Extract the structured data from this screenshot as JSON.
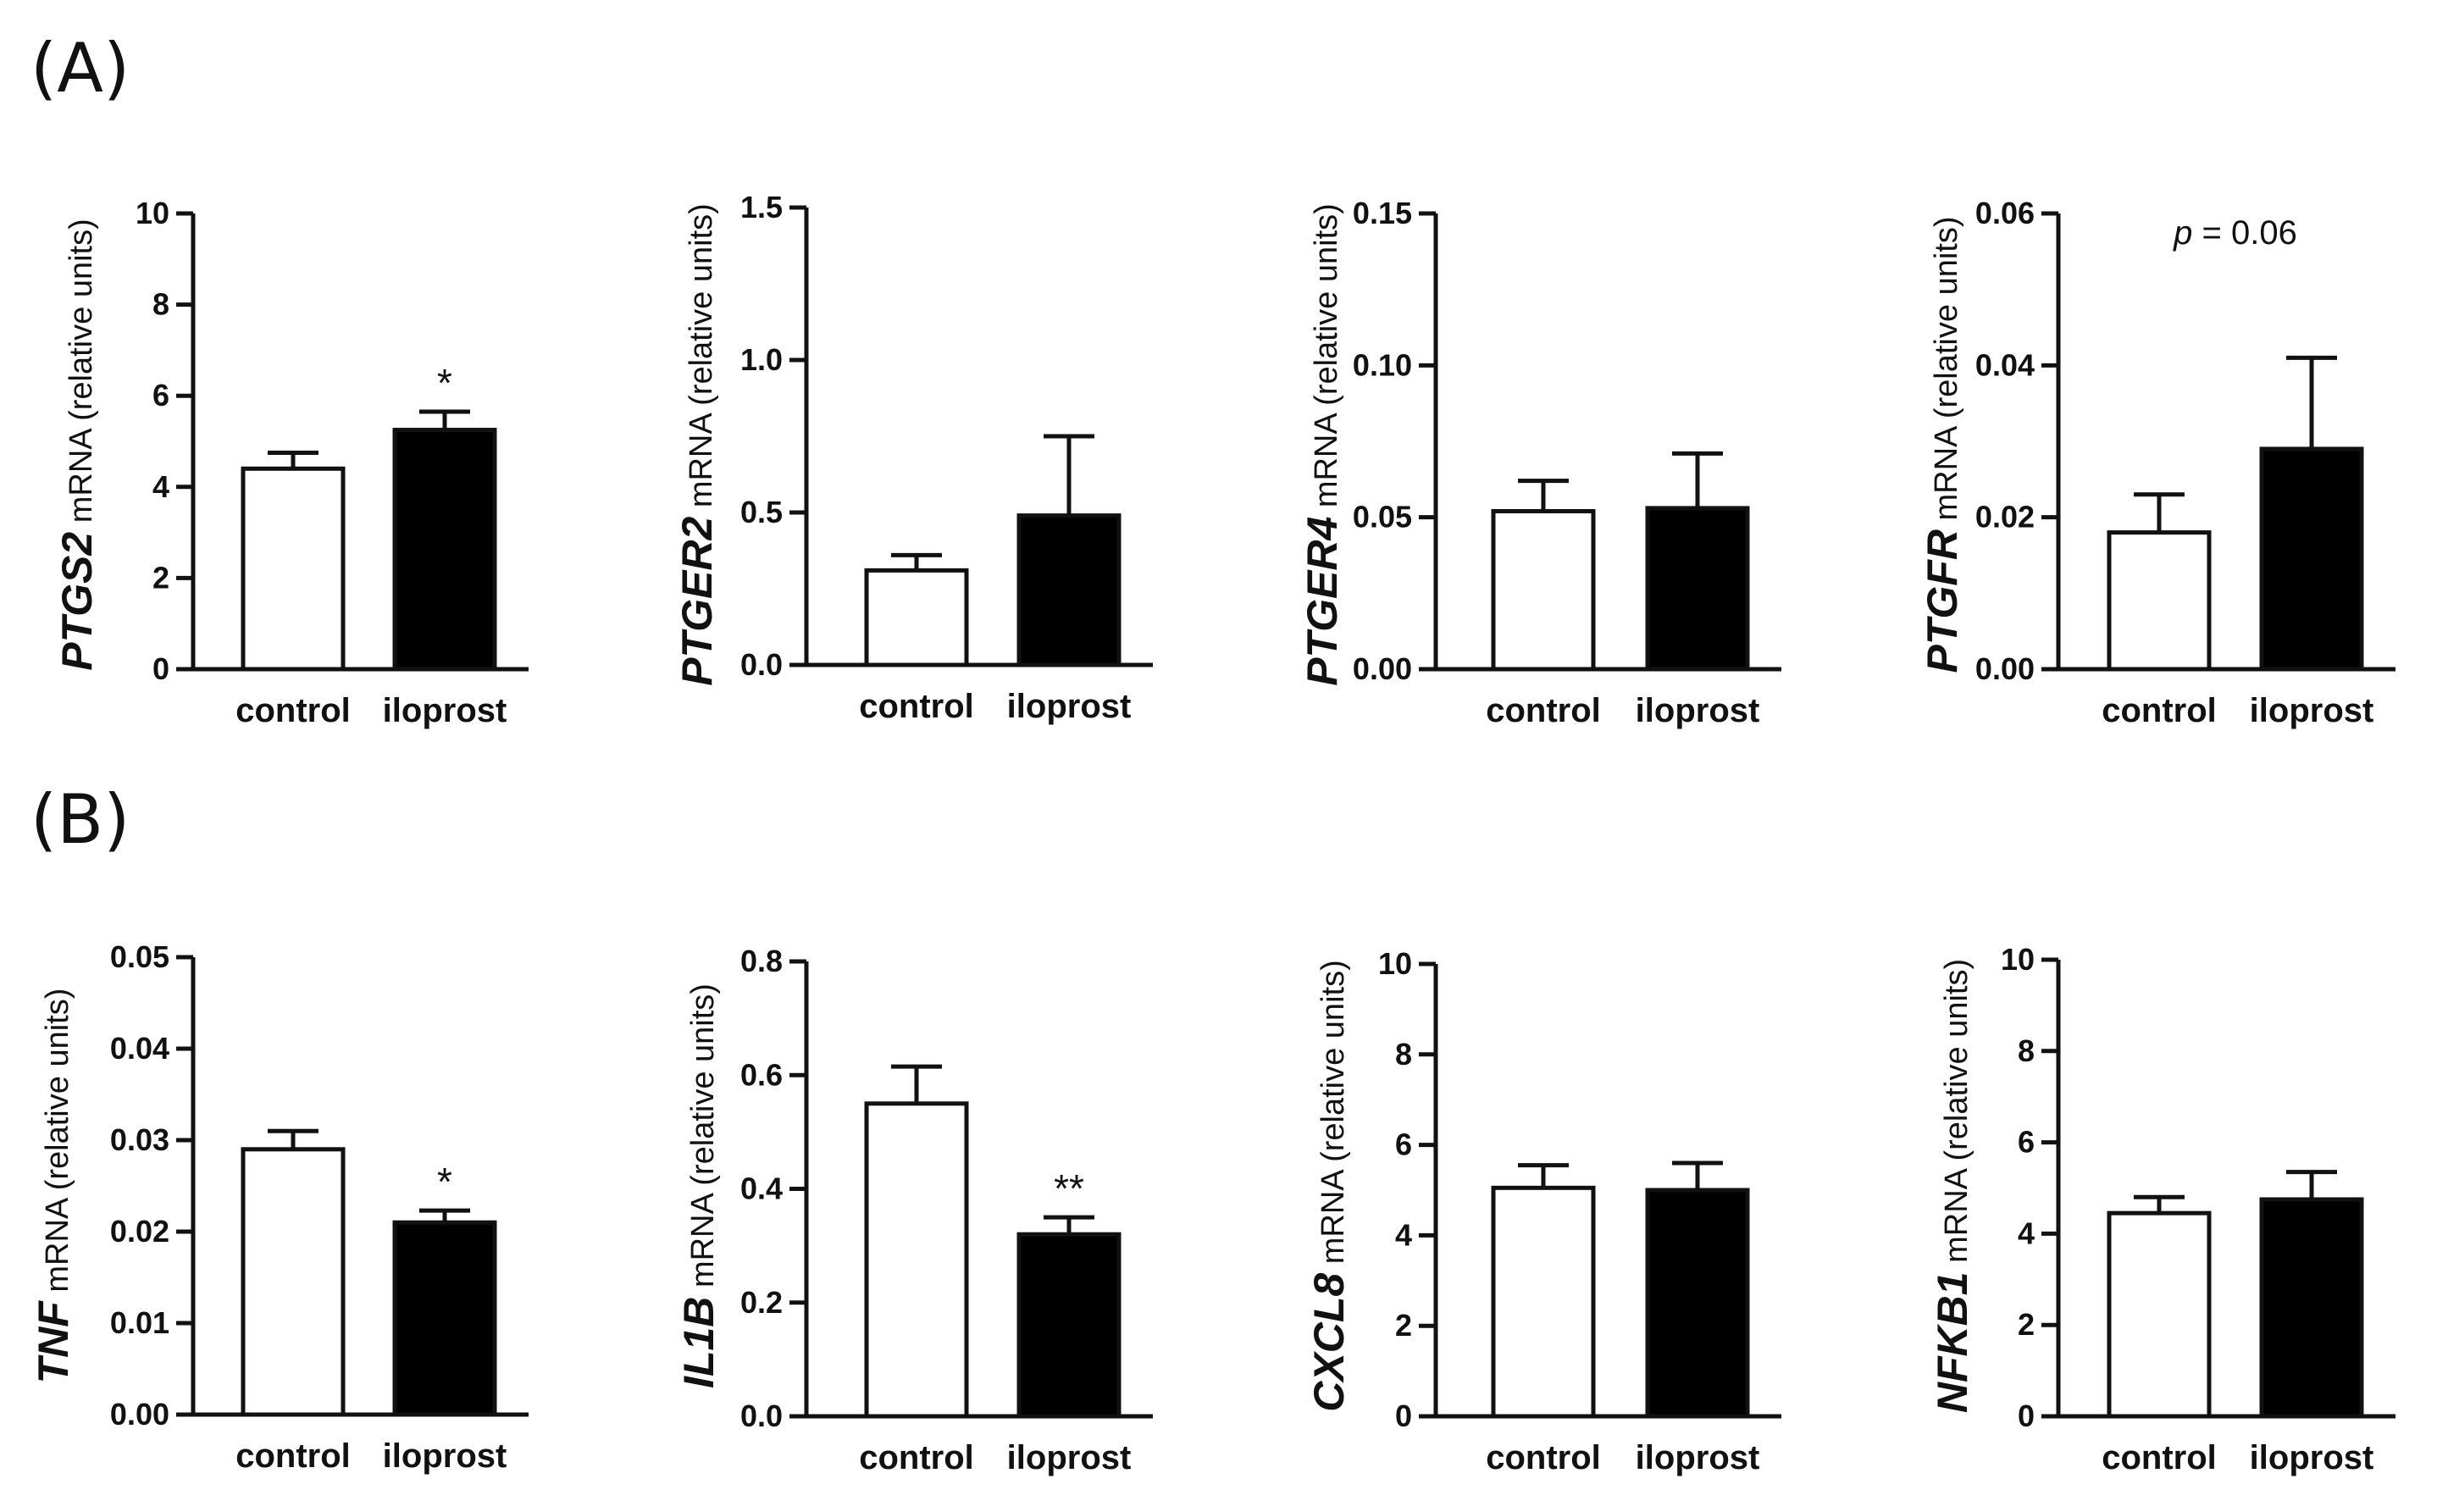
{
  "panels": [
    {
      "label": "(A)"
    },
    {
      "label": "(B)"
    }
  ],
  "chart_data": [
    {
      "type": "bar",
      "panel": "A",
      "gene": "PTGS2",
      "ylabel_rest": " mRNA (relative units)",
      "categories": [
        "control",
        "iloprost"
      ],
      "values": [
        4.4,
        5.25
      ],
      "errors": [
        0.35,
        0.4
      ],
      "fills": [
        "#ffffff",
        "#000000"
      ],
      "ylim": [
        0,
        10
      ],
      "yticks": [
        "0",
        "2",
        "4",
        "6",
        "8",
        "10"
      ],
      "significance": [
        "",
        "*"
      ],
      "annotation": null
    },
    {
      "type": "bar",
      "panel": "A",
      "gene": "PTGER2",
      "ylabel_rest": " mRNA (relative units)",
      "categories": [
        "control",
        "iloprost"
      ],
      "values": [
        0.31,
        0.49
      ],
      "errors": [
        0.05,
        0.26
      ],
      "fills": [
        "#ffffff",
        "#000000"
      ],
      "ylim": [
        0,
        1.5
      ],
      "yticks": [
        "0.0",
        "0.5",
        "1.0",
        "1.5"
      ],
      "significance": [
        "",
        ""
      ],
      "annotation": null
    },
    {
      "type": "bar",
      "panel": "A",
      "gene": "PTGER4",
      "ylabel_rest": " mRNA (relative units)",
      "categories": [
        "control",
        "iloprost"
      ],
      "values": [
        0.052,
        0.053
      ],
      "errors": [
        0.01,
        0.018
      ],
      "fills": [
        "#ffffff",
        "#000000"
      ],
      "ylim": [
        0,
        0.15
      ],
      "yticks": [
        "0.00",
        "0.05",
        "0.10",
        "0.15"
      ],
      "significance": [
        "",
        ""
      ],
      "annotation": null
    },
    {
      "type": "bar",
      "panel": "A",
      "gene": "PTGFR",
      "ylabel_rest": " mRNA (relative units)",
      "categories": [
        "control",
        "iloprost"
      ],
      "values": [
        0.018,
        0.029
      ],
      "errors": [
        0.005,
        0.012
      ],
      "fills": [
        "#ffffff",
        "#000000"
      ],
      "ylim": [
        0,
        0.06
      ],
      "yticks": [
        "0.00",
        "0.02",
        "0.04",
        "0.06"
      ],
      "significance": [
        "",
        ""
      ],
      "annotation": {
        "italic": "p",
        "rest": " = 0.06"
      }
    },
    {
      "type": "bar",
      "panel": "B",
      "gene": "TNF",
      "ylabel_rest": " mRNA (relative units)",
      "categories": [
        "control",
        "iloprost"
      ],
      "values": [
        0.029,
        0.021
      ],
      "errors": [
        0.002,
        0.0013
      ],
      "fills": [
        "#ffffff",
        "#000000"
      ],
      "ylim": [
        0,
        0.05
      ],
      "yticks": [
        "0.00",
        "0.01",
        "0.02",
        "0.03",
        "0.04",
        "0.05"
      ],
      "significance": [
        "",
        "*"
      ],
      "annotation": null
    },
    {
      "type": "bar",
      "panel": "B",
      "gene": "IL1B",
      "ylabel_rest": " mRNA (relative units)",
      "categories": [
        "control",
        "iloprost"
      ],
      "values": [
        0.55,
        0.32
      ],
      "errors": [
        0.065,
        0.03
      ],
      "fills": [
        "#ffffff",
        "#000000"
      ],
      "ylim": [
        0,
        0.8
      ],
      "yticks": [
        "0.0",
        "0.2",
        "0.4",
        "0.6",
        "0.8"
      ],
      "significance": [
        "",
        "**"
      ],
      "annotation": null
    },
    {
      "type": "bar",
      "panel": "B",
      "gene": "CXCL8",
      "ylabel_rest": " mRNA (relative units)",
      "categories": [
        "control",
        "iloprost"
      ],
      "values": [
        5.05,
        5.0
      ],
      "errors": [
        0.5,
        0.6
      ],
      "fills": [
        "#ffffff",
        "#000000"
      ],
      "ylim": [
        0,
        10
      ],
      "yticks": [
        "0",
        "2",
        "4",
        "6",
        "8",
        "10"
      ],
      "significance": [
        "",
        ""
      ],
      "annotation": null
    },
    {
      "type": "bar",
      "panel": "B",
      "gene": "NFKB1",
      "ylabel_rest": " mRNA (relative units)",
      "categories": [
        "control",
        "iloprost"
      ],
      "values": [
        4.45,
        4.75
      ],
      "errors": [
        0.35,
        0.6
      ],
      "fills": [
        "#ffffff",
        "#000000"
      ],
      "ylim": [
        0,
        10
      ],
      "yticks": [
        "0",
        "2",
        "4",
        "6",
        "8",
        "10"
      ],
      "significance": [
        "",
        ""
      ],
      "annotation": null
    }
  ]
}
